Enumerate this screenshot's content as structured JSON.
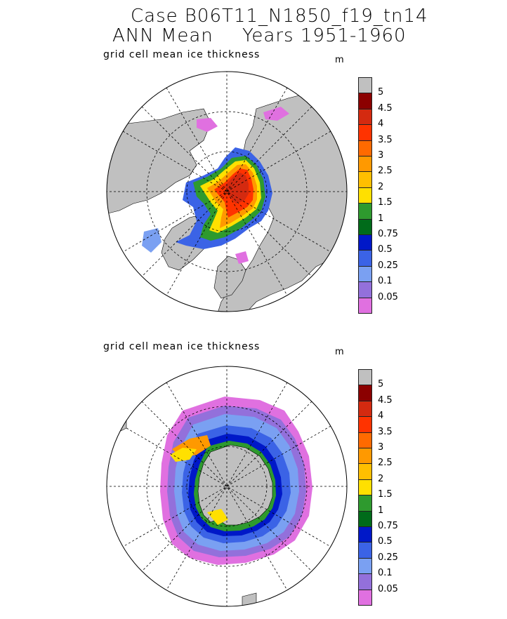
{
  "header": {
    "line1": "Case B06T11_N1850_f19_tn14",
    "line2_left": "ANN Mean",
    "line2_right": "Years 1951-1960"
  },
  "panels": [
    {
      "id": "north",
      "subtitle": "grid cell mean ice thickness",
      "unit": "m",
      "hemisphere": "north"
    },
    {
      "id": "south",
      "subtitle": "grid cell mean ice thickness",
      "unit": "m",
      "hemisphere": "south"
    }
  ],
  "colorbar": {
    "levels": [
      "5",
      "4.5",
      "4",
      "3.5",
      "3",
      "2.5",
      "2",
      "1.5",
      "1",
      "0.75",
      "0.5",
      "0.25",
      "0.1",
      "0.05"
    ],
    "colors": [
      "#c0c0c0",
      "#8b0000",
      "#d42a10",
      "#ff3300",
      "#ff6a00",
      "#ff9900",
      "#ffbf00",
      "#ffe000",
      "#2e9a2e",
      "#006b1a",
      "#0018c8",
      "#3b63e6",
      "#7aa0f2",
      "#9370db",
      "#e070e0"
    ]
  },
  "colors": {
    "land": "#c0c0c0",
    "ocean": "#ffffff",
    "grid": "#000000"
  }
}
